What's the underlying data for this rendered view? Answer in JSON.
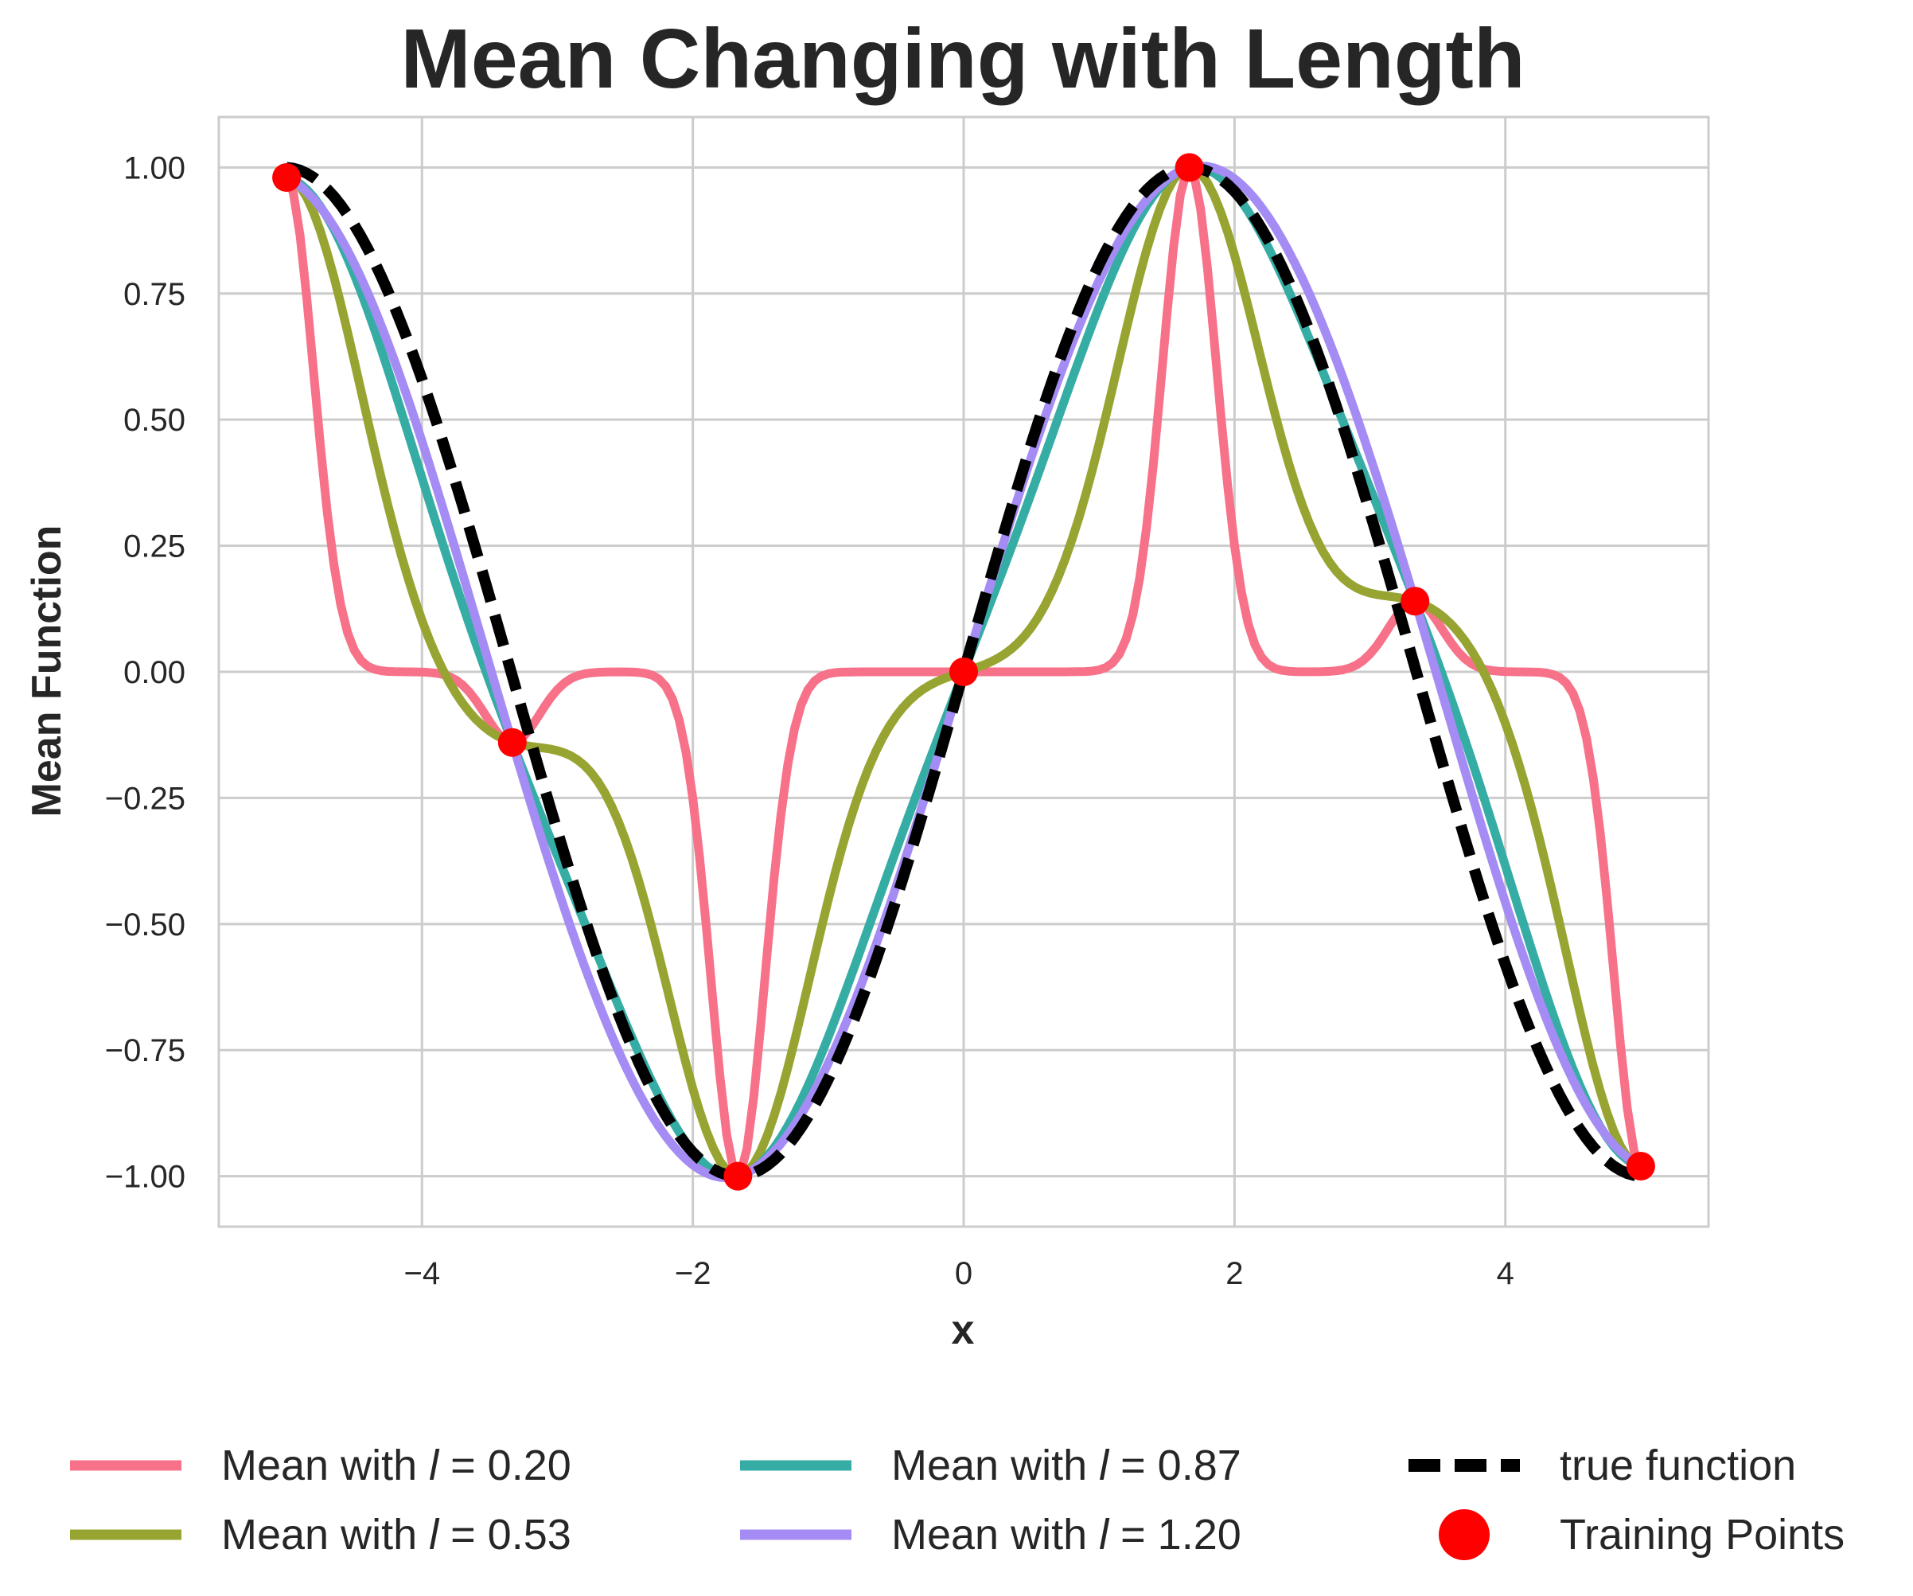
{
  "chart_data": {
    "type": "line",
    "title": "Mean Changing with Length",
    "xlabel": "x",
    "ylabel": "Mean Function",
    "xlim": [
      -5.5,
      5.5
    ],
    "ylim": [
      -1.1,
      1.1
    ],
    "xticks": [
      -4,
      -2,
      0,
      2,
      4
    ],
    "xtick_labels": [
      "−4",
      "−2",
      "0",
      "2",
      "4"
    ],
    "yticks": [
      1.0,
      0.75,
      0.5,
      0.25,
      0.0,
      -0.25,
      -0.5,
      -0.75,
      -1.0
    ],
    "ytick_labels": [
      "1.00",
      "0.75",
      "0.50",
      "0.25",
      "0.00",
      "−0.25",
      "−0.50",
      "−0.75",
      "−1.00"
    ],
    "grid": true,
    "legend_position": "bottom",
    "training_points": {
      "x": [
        -5.0,
        -3.333,
        -1.667,
        0.0,
        1.667,
        3.333,
        5.0
      ],
      "y": [
        0.98,
        -0.14,
        -1.0,
        0.0,
        1.0,
        0.14,
        -0.98
      ]
    },
    "series": [
      {
        "label_prefix": "Mean with ",
        "label_var": "l",
        "label_suffix": " = 0.20",
        "lengthscale": 0.2,
        "color": "#f77189",
        "style": "solid"
      },
      {
        "label_prefix": "Mean with ",
        "label_var": "l",
        "label_suffix": " = 0.53",
        "lengthscale": 0.53,
        "color": "#97a431",
        "style": "solid"
      },
      {
        "label_prefix": "Mean with ",
        "label_var": "l",
        "label_suffix": " = 0.87",
        "lengthscale": 0.87,
        "color": "#36ada4",
        "style": "solid"
      },
      {
        "label_prefix": "Mean with ",
        "label_var": "l",
        "label_suffix": " = 1.20",
        "lengthscale": 1.2,
        "color": "#a48cf4",
        "style": "solid"
      },
      {
        "label": "true function",
        "color": "#000000",
        "style": "dashed",
        "formula": "sin(0.94x)"
      }
    ],
    "points_label": "Training Points",
    "points_color": "#ff0000"
  }
}
